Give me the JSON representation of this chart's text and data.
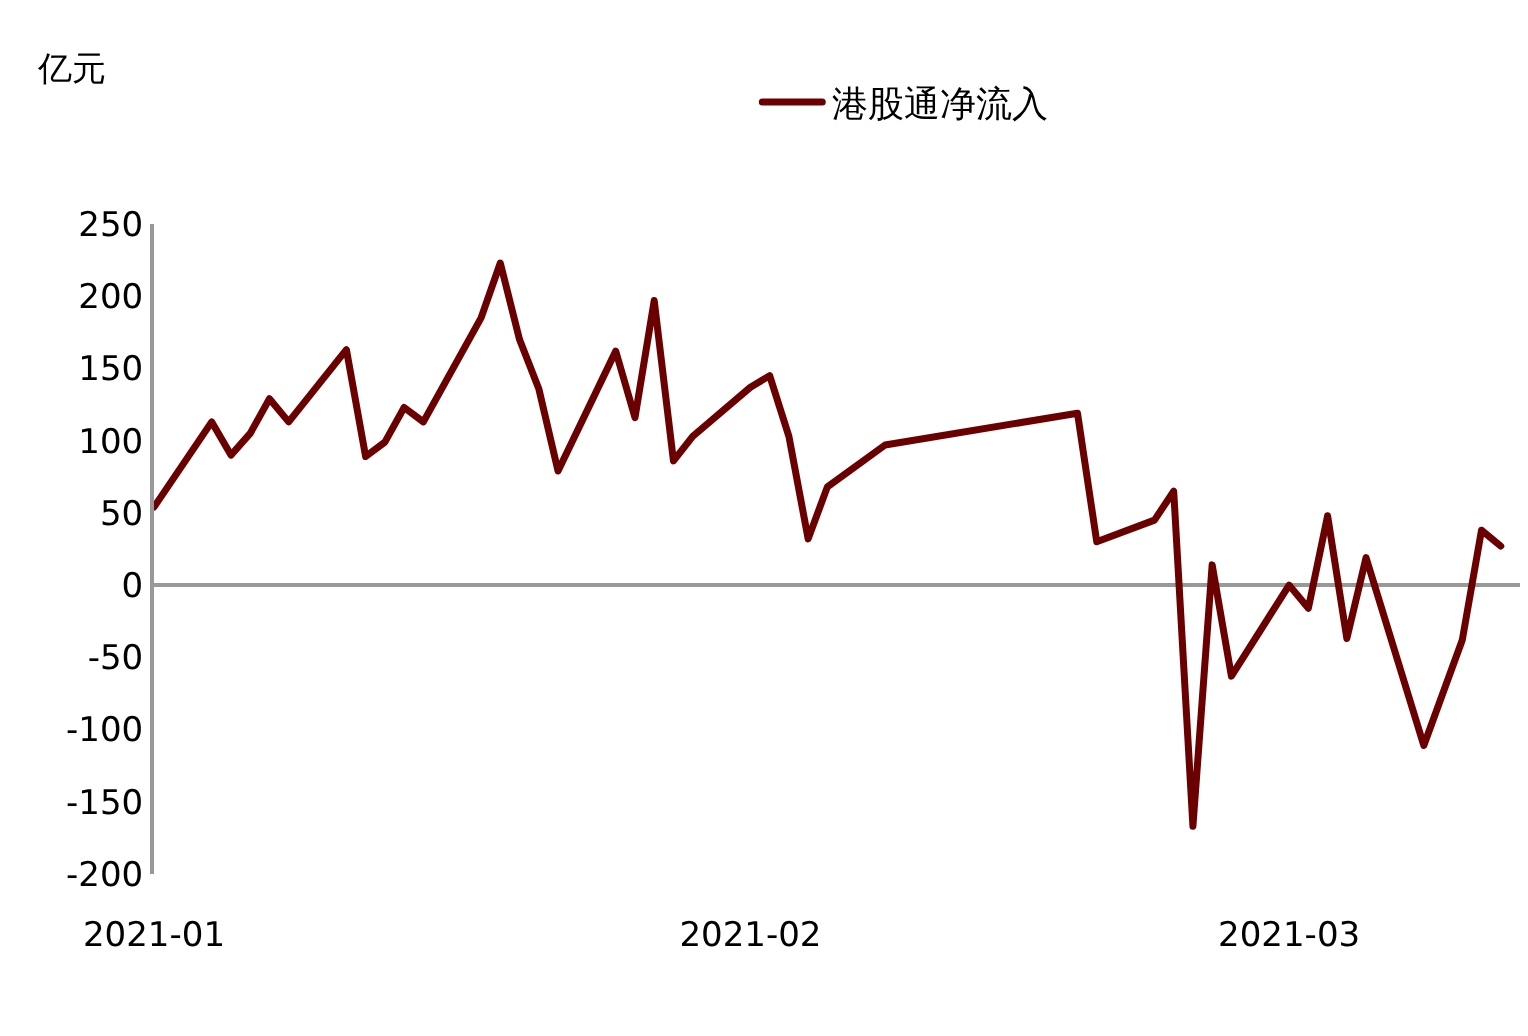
{
  "chart_data": {
    "type": "line",
    "ylabel": "亿元",
    "x": [
      "2021-01-01",
      "2021-01-04",
      "2021-01-05",
      "2021-01-06",
      "2021-01-07",
      "2021-01-08",
      "2021-01-11",
      "2021-01-12",
      "2021-01-13",
      "2021-01-14",
      "2021-01-15",
      "2021-01-18",
      "2021-01-19",
      "2021-01-20",
      "2021-01-21",
      "2021-01-22",
      "2021-01-25",
      "2021-01-26",
      "2021-01-27",
      "2021-01-28",
      "2021-01-29",
      "2021-02-01",
      "2021-02-02",
      "2021-02-03",
      "2021-02-04",
      "2021-02-05",
      "2021-02-08",
      "2021-02-18",
      "2021-02-19",
      "2021-02-22",
      "2021-02-23",
      "2021-02-24",
      "2021-02-25",
      "2021-02-26",
      "2021-03-01",
      "2021-03-02",
      "2021-03-03",
      "2021-03-04",
      "2021-03-05",
      "2021-03-08",
      "2021-03-10",
      "2021-03-11",
      "2021-03-12"
    ],
    "series": [
      {
        "name": "港股通净流入",
        "color": "#6b0000",
        "values": [
          54,
          113,
          90,
          105,
          129,
          113,
          163,
          89,
          99,
          123,
          113,
          185,
          223,
          170,
          136,
          79,
          162,
          116,
          197,
          86,
          103,
          137,
          145,
          103,
          32,
          68,
          97,
          119,
          30,
          45,
          65,
          -167,
          14,
          -63,
          0,
          -16,
          48,
          -37,
          19,
          -111,
          -38,
          38,
          27
        ]
      }
    ],
    "xlim": [
      "2021-01-01",
      "2021-03-13"
    ],
    "xticks": [
      {
        "value": "2021-01-01",
        "label": "2021-01"
      },
      {
        "value": "2021-02-01",
        "label": "2021-02"
      },
      {
        "value": "2021-03-01",
        "label": "2021-03"
      }
    ],
    "ylim": [
      -200,
      250
    ],
    "yticks": [
      -200,
      -150,
      -100,
      -50,
      0,
      50,
      100,
      150,
      200,
      250
    ],
    "ref_lines": [
      {
        "axis": "y",
        "value": 0,
        "color": "#999999"
      }
    ],
    "grid": false,
    "legend": "top",
    "marker": "none",
    "line_style": "solid"
  }
}
